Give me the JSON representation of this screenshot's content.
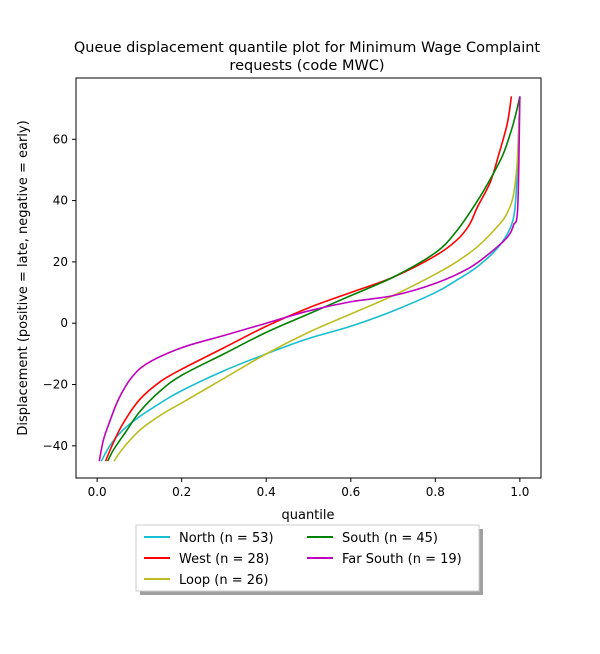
{
  "chart_data": {
    "type": "line",
    "title_line1": "Queue displacement quantile plot for Minimum Wage Complaint",
    "title_line2": "requests (code MWC)",
    "xlabel": "quantile",
    "ylabel": "Displacement (positive = late, negative = early)",
    "xlim": [
      -0.05,
      1.05
    ],
    "ylim": [
      -50.5,
      80
    ],
    "xticks": [
      0.0,
      0.2,
      0.4,
      0.6,
      0.8,
      1.0
    ],
    "xtick_labels": [
      "0.0",
      "0.2",
      "0.4",
      "0.6",
      "0.8",
      "1.0"
    ],
    "yticks": [
      -40,
      -20,
      0,
      20,
      40,
      60
    ],
    "ytick_labels": [
      "−40",
      "−20",
      "0",
      "20",
      "40",
      "60"
    ],
    "grid": false,
    "legend_position": "below plot, two columns",
    "series": [
      {
        "name": "North (n = 53)",
        "color": "#17becf",
        "points": [
          [
            0.01,
            -45
          ],
          [
            0.03,
            -40
          ],
          [
            0.06,
            -35
          ],
          [
            0.1,
            -30.5
          ],
          [
            0.15,
            -26
          ],
          [
            0.2,
            -22
          ],
          [
            0.3,
            -15.5
          ],
          [
            0.4,
            -10
          ],
          [
            0.5,
            -5
          ],
          [
            0.6,
            -1
          ],
          [
            0.7,
            4
          ],
          [
            0.8,
            10
          ],
          [
            0.85,
            14
          ],
          [
            0.9,
            18.5
          ],
          [
            0.95,
            25
          ],
          [
            0.98,
            32
          ],
          [
            0.99,
            40
          ],
          [
            0.995,
            55
          ],
          [
            1.0,
            74
          ]
        ]
      },
      {
        "name": "West (n = 28)",
        "color": "#ff0000",
        "points": [
          [
            0.02,
            -45
          ],
          [
            0.035,
            -40
          ],
          [
            0.06,
            -33
          ],
          [
            0.1,
            -25
          ],
          [
            0.15,
            -19
          ],
          [
            0.2,
            -15
          ],
          [
            0.3,
            -8
          ],
          [
            0.4,
            -1
          ],
          [
            0.5,
            5
          ],
          [
            0.6,
            10
          ],
          [
            0.7,
            15
          ],
          [
            0.8,
            22
          ],
          [
            0.85,
            27
          ],
          [
            0.88,
            32
          ],
          [
            0.9,
            38
          ],
          [
            0.93,
            46
          ],
          [
            0.95,
            55
          ],
          [
            0.97,
            65
          ],
          [
            0.98,
            74
          ]
        ]
      },
      {
        "name": "Loop (n = 26)",
        "color": "#bcbd22",
        "points": [
          [
            0.04,
            -45
          ],
          [
            0.06,
            -41
          ],
          [
            0.1,
            -35
          ],
          [
            0.15,
            -30
          ],
          [
            0.2,
            -26
          ],
          [
            0.3,
            -18
          ],
          [
            0.4,
            -10
          ],
          [
            0.5,
            -3
          ],
          [
            0.6,
            3
          ],
          [
            0.7,
            9
          ],
          [
            0.8,
            16
          ],
          [
            0.85,
            20
          ],
          [
            0.9,
            25
          ],
          [
            0.95,
            32
          ],
          [
            0.97,
            36
          ],
          [
            0.985,
            42
          ],
          [
            0.995,
            55
          ],
          [
            1.0,
            74
          ]
        ]
      },
      {
        "name": "South (n = 45)",
        "color": "#008000",
        "points": [
          [
            0.025,
            -45
          ],
          [
            0.04,
            -41
          ],
          [
            0.07,
            -35
          ],
          [
            0.1,
            -29
          ],
          [
            0.15,
            -22
          ],
          [
            0.2,
            -17
          ],
          [
            0.3,
            -10
          ],
          [
            0.4,
            -3
          ],
          [
            0.5,
            3
          ],
          [
            0.6,
            9
          ],
          [
            0.7,
            15
          ],
          [
            0.8,
            23
          ],
          [
            0.85,
            30
          ],
          [
            0.9,
            40
          ],
          [
            0.93,
            47
          ],
          [
            0.96,
            55
          ],
          [
            0.98,
            63
          ],
          [
            0.99,
            68
          ],
          [
            1.0,
            74
          ]
        ]
      },
      {
        "name": "Far South (n = 19)",
        "color": "#bf00bf",
        "points": [
          [
            0.005,
            -45
          ],
          [
            0.015,
            -38
          ],
          [
            0.03,
            -32
          ],
          [
            0.05,
            -25
          ],
          [
            0.08,
            -18
          ],
          [
            0.12,
            -13
          ],
          [
            0.2,
            -8
          ],
          [
            0.3,
            -4
          ],
          [
            0.4,
            0
          ],
          [
            0.5,
            4
          ],
          [
            0.6,
            7
          ],
          [
            0.7,
            9
          ],
          [
            0.8,
            13
          ],
          [
            0.88,
            18
          ],
          [
            0.93,
            23
          ],
          [
            0.97,
            28
          ],
          [
            0.985,
            32
          ],
          [
            0.995,
            38
          ],
          [
            1.0,
            74
          ]
        ]
      }
    ]
  }
}
